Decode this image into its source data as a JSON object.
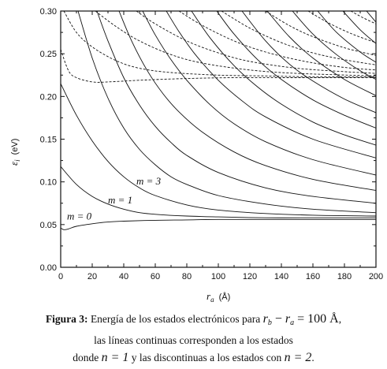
{
  "chart_data": {
    "type": "line",
    "xlabel": "r",
    "xlabel_sub": "a",
    "xlabel_unit": "(Å)",
    "ylabel": "ε",
    "ylabel_sub": "i",
    "ylabel_unit": "(eV)",
    "xlim": [
      0,
      200
    ],
    "ylim": [
      0.0,
      0.3
    ],
    "x_ticks": [
      "0",
      "20",
      "40",
      "60",
      "80",
      "100",
      "120",
      "140",
      "160",
      "180",
      "200"
    ],
    "y_ticks": [
      "0.00",
      "0.05",
      "0.10",
      "0.15",
      "0.20",
      "0.25",
      "0.30"
    ],
    "grid": false,
    "annotations": [
      {
        "text": "m = 3",
        "x": 48,
        "y": 0.097
      },
      {
        "text": "m = 1",
        "x": 30,
        "y": 0.075
      },
      {
        "text": "m = 0",
        "x": 4,
        "y": 0.056
      }
    ],
    "series": [
      {
        "style": "solid",
        "m": 0,
        "x": [
          0,
          2,
          5,
          10,
          20,
          30,
          40,
          60,
          80,
          100,
          130,
          160,
          200
        ],
        "y": [
          0.046,
          0.044,
          0.045,
          0.048,
          0.051,
          0.053,
          0.054,
          0.055,
          0.0555,
          0.056,
          0.056,
          0.056,
          0.056
        ]
      },
      {
        "style": "solid",
        "m": 1,
        "x": [
          0,
          10,
          20,
          30,
          40,
          50,
          60,
          80,
          100,
          130,
          160,
          200
        ],
        "y": [
          0.118,
          0.097,
          0.083,
          0.074,
          0.068,
          0.064,
          0.062,
          0.06,
          0.059,
          0.058,
          0.058,
          0.058
        ]
      },
      {
        "style": "solid",
        "m": 2,
        "x": [
          0,
          10,
          20,
          30,
          40,
          50,
          60,
          80,
          100,
          130,
          160,
          200
        ],
        "y": [
          0.215,
          0.178,
          0.148,
          0.124,
          0.106,
          0.093,
          0.084,
          0.073,
          0.067,
          0.063,
          0.061,
          0.06
        ]
      },
      {
        "style": "solid",
        "m": 3,
        "x": [
          11,
          20,
          30,
          40,
          50,
          60,
          70,
          80,
          100,
          130,
          160,
          200
        ],
        "y": [
          0.3,
          0.245,
          0.198,
          0.163,
          0.138,
          0.12,
          0.106,
          0.097,
          0.084,
          0.074,
          0.068,
          0.064
        ]
      },
      {
        "style": "solid",
        "m": 4,
        "x": [
          23,
          30,
          40,
          50,
          60,
          70,
          80,
          100,
          130,
          160,
          200
        ],
        "y": [
          0.3,
          0.265,
          0.222,
          0.19,
          0.165,
          0.146,
          0.131,
          0.111,
          0.093,
          0.083,
          0.075
        ]
      },
      {
        "style": "solid",
        "m": 5,
        "x": [
          37,
          45,
          55,
          65,
          75,
          90,
          110,
          130,
          160,
          200
        ],
        "y": [
          0.3,
          0.265,
          0.23,
          0.203,
          0.182,
          0.158,
          0.135,
          0.119,
          0.103,
          0.09
        ]
      },
      {
        "style": "solid",
        "m": 6,
        "x": [
          52,
          60,
          70,
          80,
          95,
          110,
          130,
          160,
          200
        ],
        "y": [
          0.3,
          0.272,
          0.243,
          0.219,
          0.19,
          0.168,
          0.147,
          0.126,
          0.108
        ]
      },
      {
        "style": "solid",
        "m": 7,
        "x": [
          67,
          75,
          85,
          100,
          115,
          130,
          160,
          200
        ],
        "y": [
          0.3,
          0.276,
          0.25,
          0.219,
          0.195,
          0.176,
          0.15,
          0.128
        ]
      },
      {
        "style": "solid",
        "m": 8,
        "x": [
          83,
          95,
          110,
          125,
          140,
          160,
          180,
          200
        ],
        "y": [
          0.3,
          0.268,
          0.236,
          0.211,
          0.191,
          0.17,
          0.155,
          0.143
        ]
      },
      {
        "style": "solid",
        "m": 9,
        "x": [
          99,
          110,
          125,
          140,
          160,
          180,
          200
        ],
        "y": [
          0.3,
          0.273,
          0.243,
          0.22,
          0.196,
          0.178,
          0.163
        ]
      },
      {
        "style": "solid",
        "m": 10,
        "x": [
          115,
          130,
          145,
          160,
          180,
          200
        ],
        "y": [
          0.3,
          0.265,
          0.238,
          0.218,
          0.197,
          0.181
        ]
      },
      {
        "style": "solid",
        "m": 11,
        "x": [
          131,
          145,
          160,
          180,
          200
        ],
        "y": [
          0.3,
          0.27,
          0.245,
          0.22,
          0.201
        ]
      },
      {
        "style": "solid",
        "m": 12,
        "x": [
          147,
          160,
          175,
          190,
          200
        ],
        "y": [
          0.3,
          0.273,
          0.249,
          0.23,
          0.22
        ]
      },
      {
        "style": "solid",
        "m": 13,
        "x": [
          163,
          175,
          190,
          200
        ],
        "y": [
          0.3,
          0.275,
          0.252,
          0.24
        ]
      },
      {
        "style": "solid",
        "m": 14,
        "x": [
          179,
          190,
          200
        ],
        "y": [
          0.3,
          0.278,
          0.262
        ]
      },
      {
        "style": "solid",
        "m": 15,
        "x": [
          194,
          200
        ],
        "y": [
          0.3,
          0.287
        ]
      },
      {
        "style": "dashed",
        "m": 0,
        "x": [
          0,
          5,
          10,
          20,
          30,
          50,
          80,
          110,
          140,
          170,
          200
        ],
        "y": [
          0.255,
          0.23,
          0.222,
          0.217,
          0.217,
          0.219,
          0.221,
          0.222,
          0.222,
          0.222,
          0.222
        ]
      },
      {
        "style": "dashed",
        "m": 1,
        "x": [
          2,
          10,
          20,
          35,
          50,
          70,
          100,
          130,
          160,
          200
        ],
        "y": [
          0.3,
          0.275,
          0.258,
          0.242,
          0.233,
          0.228,
          0.225,
          0.224,
          0.223,
          0.223
        ]
      },
      {
        "style": "dashed",
        "m": 2,
        "x": [
          22,
          35,
          50,
          70,
          90,
          120,
          150,
          200
        ],
        "y": [
          0.3,
          0.282,
          0.265,
          0.249,
          0.239,
          0.231,
          0.227,
          0.224
        ]
      },
      {
        "style": "dashed",
        "m": 3,
        "x": [
          48,
          60,
          80,
          100,
          120,
          150,
          180,
          200
        ],
        "y": [
          0.3,
          0.285,
          0.265,
          0.251,
          0.241,
          0.233,
          0.229,
          0.227
        ]
      },
      {
        "style": "dashed",
        "m": 4,
        "x": [
          75,
          90,
          110,
          130,
          155,
          180,
          200
        ],
        "y": [
          0.3,
          0.283,
          0.265,
          0.252,
          0.241,
          0.234,
          0.231
        ]
      },
      {
        "style": "dashed",
        "m": 5,
        "x": [
          102,
          120,
          140,
          160,
          180,
          200
        ],
        "y": [
          0.3,
          0.28,
          0.263,
          0.251,
          0.243,
          0.237
        ]
      },
      {
        "style": "dashed",
        "m": 6,
        "x": [
          130,
          145,
          160,
          180,
          200
        ],
        "y": [
          0.3,
          0.283,
          0.27,
          0.257,
          0.248
        ]
      },
      {
        "style": "dashed",
        "m": 7,
        "x": [
          157,
          170,
          185,
          200
        ],
        "y": [
          0.3,
          0.286,
          0.273,
          0.263
        ]
      },
      {
        "style": "dashed",
        "m": 8,
        "x": [
          184,
          192,
          200
        ],
        "y": [
          0.3,
          0.292,
          0.285
        ]
      }
    ]
  },
  "caption": {
    "fig_label": "Figura 3:",
    "line1_text": "Energía de los estados electrónicos para",
    "math1_a": "r",
    "math1_a_sub": "b",
    "math1_minus": "−",
    "math1_b": "r",
    "math1_b_sub": "a",
    "math1_eq": "= 100 Å",
    "line1_end": ",",
    "line2": "las líneas continuas corresponden a los estados",
    "line3_start": "donde",
    "math2": "n = 1",
    "line3_mid": "y las discontinuas a los estados con",
    "math3": "n = 2",
    "line3_end": "."
  }
}
